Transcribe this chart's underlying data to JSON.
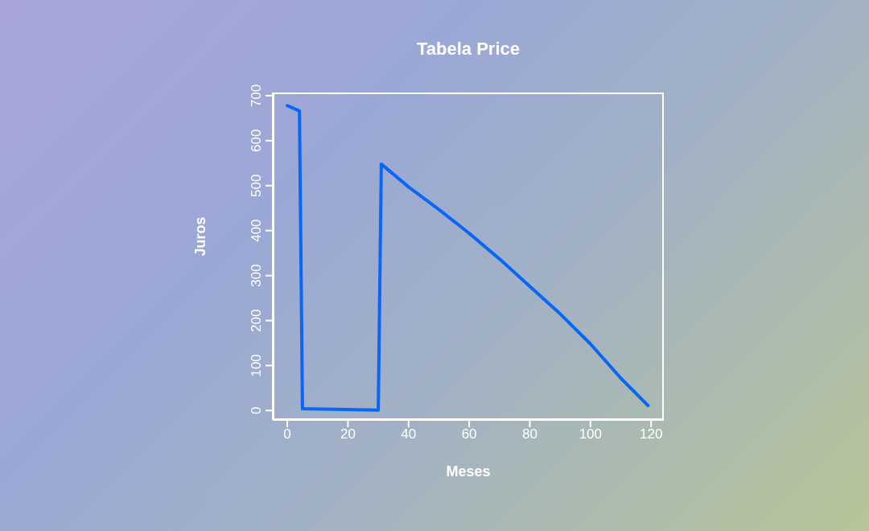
{
  "chart_data": {
    "type": "line",
    "title": "Tabela Price",
    "xlabel": "Meses",
    "ylabel": "Juros",
    "x": [
      0,
      4,
      5,
      30,
      31,
      40,
      50,
      60,
      70,
      80,
      90,
      100,
      110,
      119
    ],
    "series": [
      {
        "color": "#0a66f5",
        "values": [
          678,
          666,
          4,
          1,
          548,
          497,
          447,
          394,
          337,
          276,
          215,
          148,
          72,
          11
        ]
      }
    ],
    "xlim": [
      -4.8,
      124.2
    ],
    "ylim": [
      -21,
      707
    ],
    "xticks": [
      0,
      20,
      40,
      60,
      80,
      100,
      120
    ],
    "yticks": [
      0,
      100,
      200,
      300,
      400,
      500,
      600,
      700
    ],
    "marker": "none",
    "line_style": "solid"
  }
}
